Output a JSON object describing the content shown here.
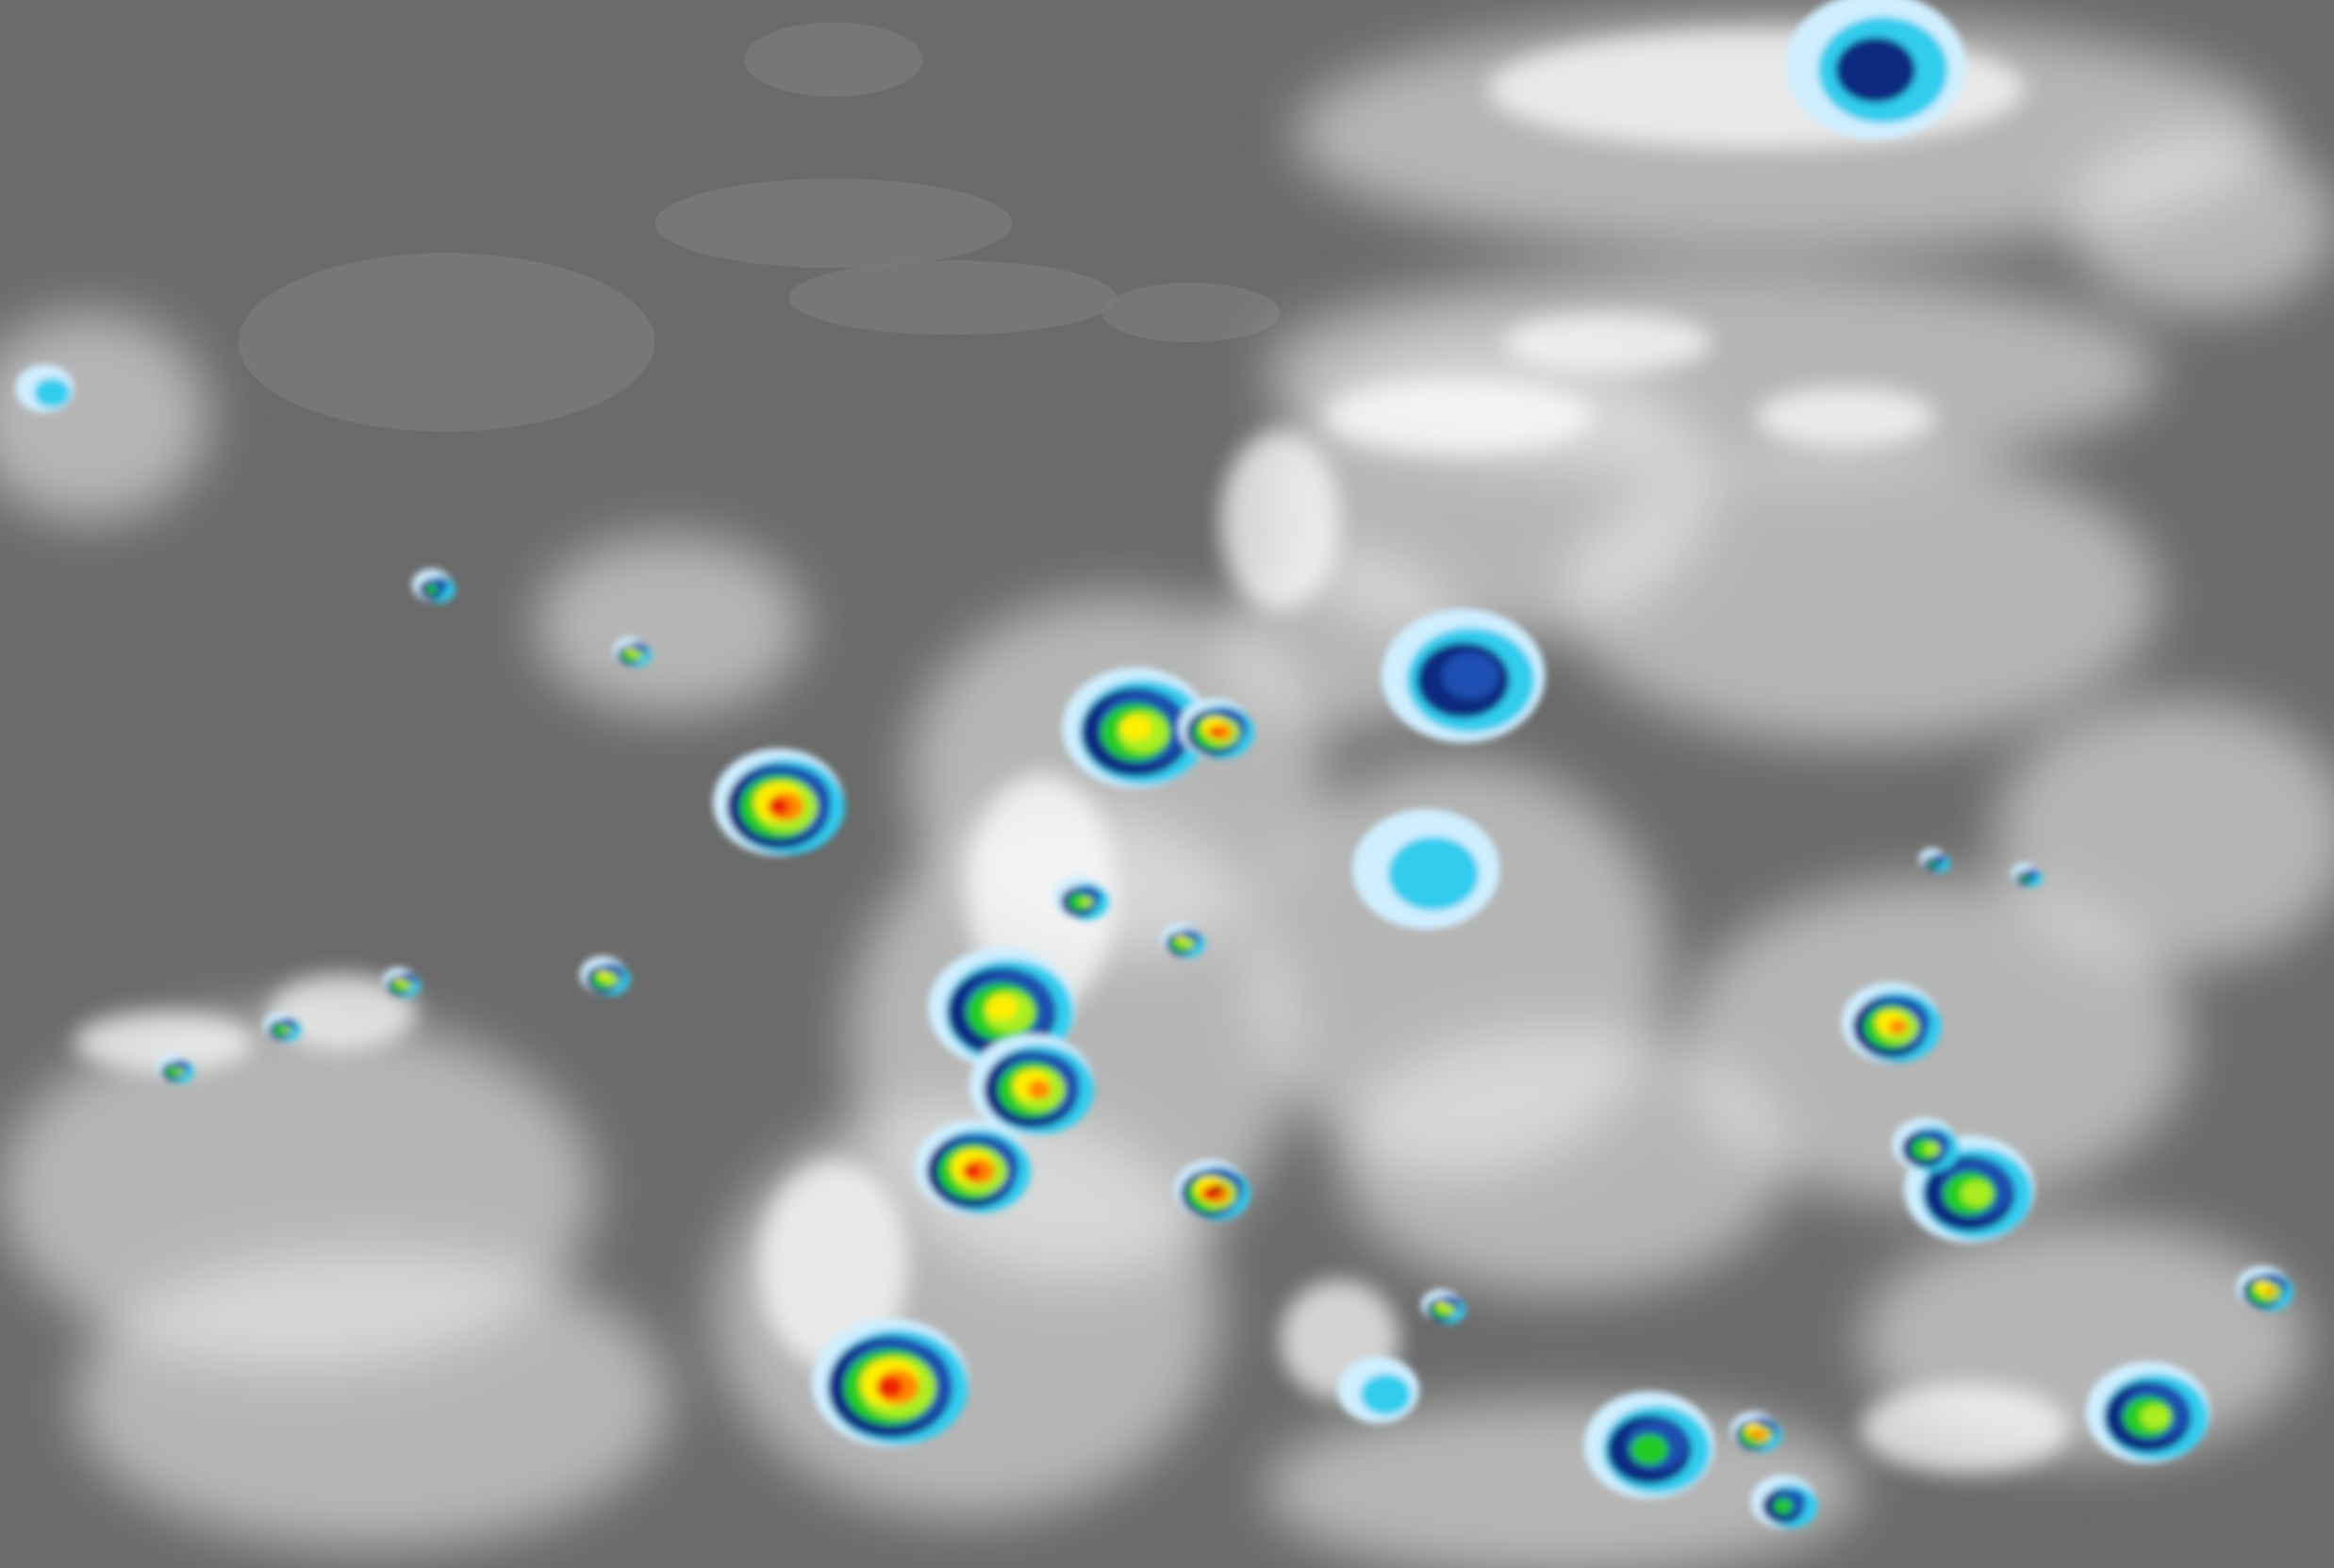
{
  "image": {
    "colors": {
      "background_gray": "#6b6b6b",
      "land_gray": "#7a7a7a",
      "cloud_white": "#f2f2f2",
      "scale": [
        "#cfeeff",
        "#33ccee",
        "#1a4fb0",
        "#0a2a80",
        "#22cc22",
        "#aaee22",
        "#ffee00",
        "#ff8800",
        "#ee2200",
        "#990000"
      ]
    }
  }
}
